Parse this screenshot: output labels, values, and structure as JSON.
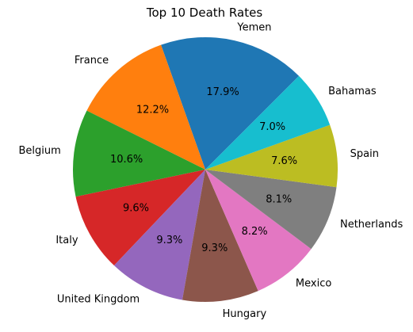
{
  "chart_data": {
    "type": "pie",
    "title": "Top 10 Death Rates",
    "categories": [
      "Yemen",
      "France",
      "Belgium",
      "Italy",
      "United Kingdom",
      "Hungary",
      "Mexico",
      "Netherlands",
      "Spain",
      "Bahamas"
    ],
    "values": [
      17.9,
      12.2,
      10.6,
      9.6,
      9.3,
      9.3,
      8.2,
      8.1,
      7.6,
      7.0
    ],
    "value_labels": [
      "17.9%",
      "12.2%",
      "10.6%",
      "9.6%",
      "9.3%",
      "9.3%",
      "8.2%",
      "8.1%",
      "7.6%",
      "7.0%"
    ],
    "colors": [
      "#1f77b4",
      "#ff7f0e",
      "#2ca02c",
      "#d62728",
      "#9467bd",
      "#8c564b",
      "#e377c2",
      "#7f7f7f",
      "#bcbd22",
      "#17becf"
    ],
    "start_angle_deg": 45,
    "direction": "counterclockwise",
    "legend": "none"
  }
}
